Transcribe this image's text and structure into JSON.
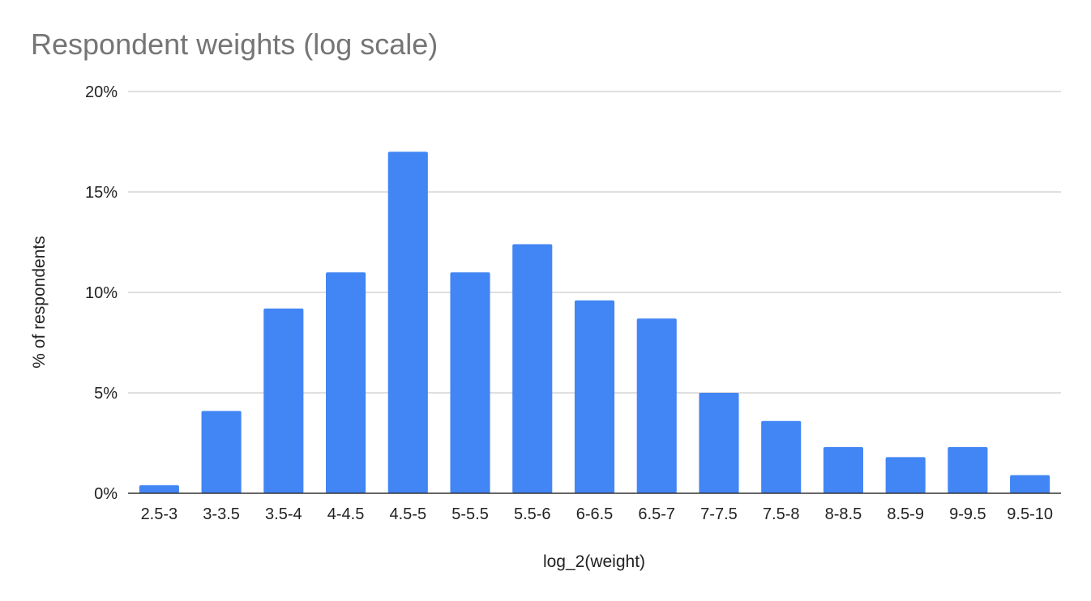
{
  "chart_data": {
    "type": "bar",
    "title": "Respondent weights (log scale)",
    "xlabel": "log_2(weight)",
    "ylabel": "% of respondents",
    "categories": [
      "2.5-3",
      "3-3.5",
      "3.5-4",
      "4-4.5",
      "4.5-5",
      "5-5.5",
      "5.5-6",
      "6-6.5",
      "6.5-7",
      "7-7.5",
      "7.5-8",
      "8-8.5",
      "8.5-9",
      "9-9.5",
      "9.5-10"
    ],
    "values": [
      0.4,
      4.1,
      9.2,
      11.0,
      17.0,
      11.0,
      12.4,
      9.6,
      8.7,
      5.0,
      3.6,
      2.3,
      1.8,
      2.3,
      0.9
    ],
    "ylim": [
      0,
      20
    ],
    "yticks": [
      0,
      5,
      10,
      15,
      20
    ],
    "ytick_labels": [
      "0%",
      "5%",
      "10%",
      "15%",
      "20%"
    ],
    "bar_color": "#4285f4",
    "grid": true,
    "legend": "none"
  }
}
